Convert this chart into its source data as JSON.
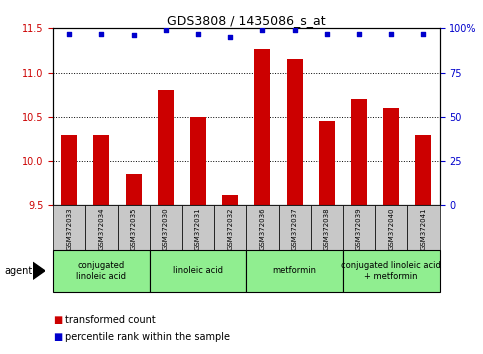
{
  "title": "GDS3808 / 1435086_s_at",
  "samples": [
    "GSM372033",
    "GSM372034",
    "GSM372035",
    "GSM372030",
    "GSM372031",
    "GSM372032",
    "GSM372036",
    "GSM372037",
    "GSM372038",
    "GSM372039",
    "GSM372040",
    "GSM372041"
  ],
  "bar_values": [
    10.3,
    10.3,
    9.85,
    10.8,
    10.5,
    9.62,
    11.27,
    11.15,
    10.45,
    10.7,
    10.6,
    10.3
  ],
  "percentile_values": [
    97,
    97,
    96,
    99,
    97,
    95,
    99,
    99,
    97,
    97,
    97,
    97
  ],
  "bar_color": "#cc0000",
  "dot_color": "#0000cc",
  "ylim_left": [
    9.5,
    11.5
  ],
  "ylim_right": [
    0,
    100
  ],
  "yticks_left": [
    9.5,
    10.0,
    10.5,
    11.0,
    11.5
  ],
  "yticks_right": [
    0,
    25,
    50,
    75,
    100
  ],
  "ytick_labels_right": [
    "0",
    "25",
    "50",
    "75",
    "100%"
  ],
  "agent_groups": [
    {
      "label": "conjugated\nlinoleic acid",
      "start": 0,
      "end": 3,
      "color": "#90EE90"
    },
    {
      "label": "linoleic acid",
      "start": 3,
      "end": 6,
      "color": "#90EE90"
    },
    {
      "label": "metformin",
      "start": 6,
      "end": 9,
      "color": "#90EE90"
    },
    {
      "label": "conjugated linoleic acid\n+ metformin",
      "start": 9,
      "end": 12,
      "color": "#90EE90"
    }
  ],
  "legend_items": [
    {
      "label": "transformed count",
      "color": "#cc0000"
    },
    {
      "label": "percentile rank within the sample",
      "color": "#0000cc"
    }
  ],
  "agent_label": "agent",
  "sample_bg": "#c8c8c8",
  "plot_bg": "#ffffff",
  "bar_width": 0.5
}
